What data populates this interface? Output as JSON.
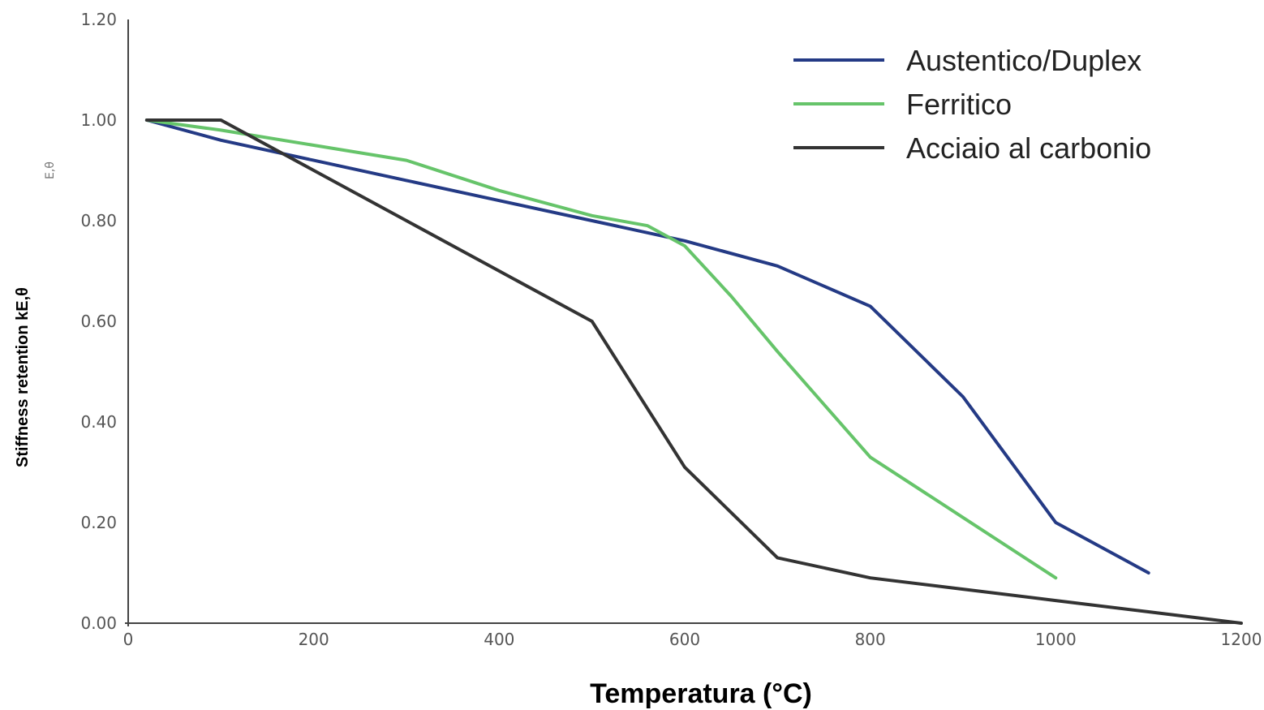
{
  "chart_data": {
    "type": "line",
    "title": "",
    "xlabel": "Temperatura (°C)",
    "ylabel": "Stiffness retention kE,θ",
    "ylabel_small": "E,θ",
    "xlim": [
      0,
      1200
    ],
    "ylim": [
      0,
      1.2
    ],
    "x_ticks": [
      "0",
      "200",
      "400",
      "600",
      "800",
      "1000",
      "1200"
    ],
    "y_ticks": [
      "0.00",
      "0.20",
      "0.40",
      "0.60",
      "0.80",
      "1.00",
      "1.20"
    ],
    "grid": false,
    "legend_position": "top-right",
    "series": [
      {
        "name": "Austentico/Duplex",
        "color": "#243a85",
        "x": [
          20,
          100,
          200,
          300,
          400,
          500,
          600,
          700,
          800,
          900,
          1000,
          1100
        ],
        "y": [
          1.0,
          0.96,
          0.92,
          0.88,
          0.84,
          0.8,
          0.76,
          0.71,
          0.63,
          0.45,
          0.2,
          0.1
        ]
      },
      {
        "name": "Ferritico",
        "color": "#66c46a",
        "x": [
          20,
          100,
          200,
          300,
          400,
          500,
          560,
          600,
          650,
          700,
          800,
          900,
          1000
        ],
        "y": [
          1.0,
          0.98,
          0.95,
          0.92,
          0.86,
          0.81,
          0.79,
          0.75,
          0.65,
          0.54,
          0.33,
          0.21,
          0.09
        ]
      },
      {
        "name": "Acciaio al carbonio",
        "color": "#333333",
        "x": [
          20,
          100,
          200,
          300,
          400,
          500,
          600,
          700,
          800,
          900,
          1000,
          1100,
          1200
        ],
        "y": [
          1.0,
          1.0,
          0.9,
          0.8,
          0.7,
          0.6,
          0.31,
          0.13,
          0.09,
          0.0675,
          0.045,
          0.0225,
          0.0
        ]
      }
    ]
  }
}
